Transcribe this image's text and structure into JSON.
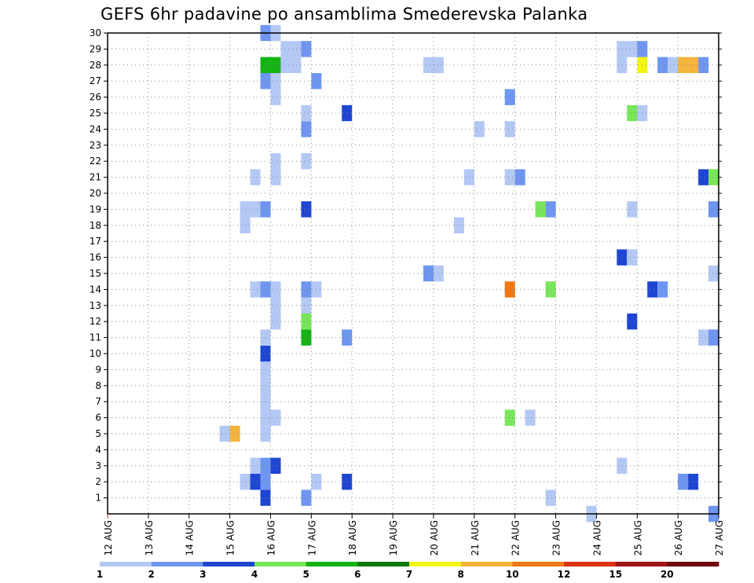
{
  "chart_data": {
    "type": "heatmap",
    "title": "GEFS 6hr padavine po ansamblima Smederevska Palanka",
    "x_ticks": [
      "12 AUG",
      "13 AUG",
      "14 AUG",
      "15 AUG",
      "16 AUG",
      "17 AUG",
      "18 AUG",
      "19 AUG",
      "20 AUG",
      "21 AUG",
      "22 AUG",
      "23 AUG",
      "24 AUG",
      "25 AUG",
      "26 AUG",
      "27 AUG"
    ],
    "y_ticks": [
      1,
      2,
      3,
      4,
      5,
      6,
      7,
      8,
      9,
      10,
      11,
      12,
      13,
      14,
      15,
      16,
      17,
      18,
      19,
      20,
      21,
      22,
      23,
      24,
      25,
      26,
      27,
      28,
      29,
      30
    ],
    "ylim": [
      0,
      30
    ],
    "x_step": "6 hr",
    "grid": true,
    "colorbar": {
      "ticks": [
        "1",
        "2",
        "3",
        "4",
        "5",
        "6",
        "7",
        "8",
        "10",
        "12",
        "15",
        "20"
      ],
      "colors": [
        "#b4c8f5",
        "#6e96f0",
        "#1e46d2",
        "#78e65a",
        "#14b414",
        "#0a780a",
        "#f5f514",
        "#f5b43c",
        "#f07814",
        "#dc3214",
        "#a01414",
        "#6e0a0a"
      ]
    },
    "cells_day_member_value": [
      [
        15.75,
        1,
        3
      ],
      [
        15.75,
        2,
        2
      ],
      [
        15.75,
        3,
        2
      ],
      [
        15.75,
        5,
        1
      ],
      [
        15.75,
        6,
        1
      ],
      [
        15.75,
        7,
        1
      ],
      [
        15.75,
        8,
        1
      ],
      [
        15.75,
        9,
        1
      ],
      [
        15.75,
        10,
        3
      ],
      [
        15.75,
        11,
        1
      ],
      [
        15.75,
        14,
        2
      ],
      [
        15.75,
        19,
        2
      ],
      [
        15.75,
        27,
        2
      ],
      [
        15.75,
        28,
        5
      ],
      [
        15.75,
        30,
        2
      ],
      [
        16.0,
        3,
        3
      ],
      [
        16.0,
        6,
        1
      ],
      [
        16.0,
        12,
        1
      ],
      [
        16.0,
        13,
        1
      ],
      [
        16.0,
        14,
        1
      ],
      [
        16.0,
        21,
        1
      ],
      [
        16.0,
        22,
        1
      ],
      [
        16.0,
        26,
        1
      ],
      [
        16.0,
        27,
        1
      ],
      [
        16.0,
        28,
        5
      ],
      [
        16.0,
        30,
        1
      ],
      [
        15.5,
        2,
        3
      ],
      [
        15.5,
        3,
        1
      ],
      [
        15.5,
        14,
        1
      ],
      [
        15.5,
        19,
        1
      ],
      [
        15.5,
        21,
        1
      ],
      [
        15.25,
        2,
        1
      ],
      [
        15.25,
        18,
        1
      ],
      [
        15.25,
        19,
        1
      ],
      [
        15.0,
        5,
        8
      ],
      [
        14.75,
        5,
        1
      ],
      [
        16.25,
        28,
        1
      ],
      [
        16.25,
        29,
        1
      ],
      [
        16.5,
        28,
        1
      ],
      [
        16.5,
        29,
        1
      ],
      [
        16.75,
        1,
        2
      ],
      [
        16.75,
        11,
        5
      ],
      [
        16.75,
        12,
        4
      ],
      [
        16.75,
        13,
        1
      ],
      [
        16.75,
        14,
        2
      ],
      [
        16.75,
        19,
        3
      ],
      [
        16.75,
        22,
        1
      ],
      [
        16.75,
        24,
        2
      ],
      [
        16.75,
        25,
        1
      ],
      [
        16.75,
        29,
        2
      ],
      [
        17.0,
        2,
        1
      ],
      [
        17.0,
        14,
        1
      ],
      [
        17.0,
        27,
        2
      ],
      [
        17.75,
        2,
        3
      ],
      [
        17.75,
        11,
        2
      ],
      [
        17.75,
        25,
        3
      ],
      [
        19.75,
        15,
        2
      ],
      [
        19.75,
        28,
        1
      ],
      [
        20.0,
        15,
        1
      ],
      [
        20.0,
        28,
        1
      ],
      [
        20.5,
        18,
        1
      ],
      [
        20.75,
        21,
        1
      ],
      [
        21.0,
        24,
        1
      ],
      [
        21.75,
        6,
        4
      ],
      [
        21.75,
        14,
        9
      ],
      [
        21.75,
        21,
        1
      ],
      [
        21.75,
        24,
        1
      ],
      [
        21.75,
        26,
        2
      ],
      [
        22.0,
        21,
        2
      ],
      [
        22.25,
        6,
        1
      ],
      [
        22.5,
        19,
        4
      ],
      [
        22.75,
        19,
        2
      ],
      [
        22.75,
        14,
        4
      ],
      [
        22.75,
        1,
        1
      ],
      [
        23.75,
        0,
        1
      ],
      [
        24.5,
        3,
        1
      ],
      [
        24.5,
        16,
        3
      ],
      [
        24.5,
        28,
        1
      ],
      [
        24.5,
        29,
        1
      ],
      [
        24.75,
        12,
        3
      ],
      [
        24.75,
        16,
        1
      ],
      [
        24.75,
        19,
        1
      ],
      [
        24.75,
        25,
        4
      ],
      [
        24.75,
        29,
        1
      ],
      [
        25.0,
        25,
        1
      ],
      [
        25.0,
        28,
        7
      ],
      [
        25.0,
        29,
        2
      ],
      [
        25.25,
        14,
        3
      ],
      [
        25.5,
        14,
        2
      ],
      [
        25.5,
        28,
        2
      ],
      [
        25.75,
        28,
        1
      ],
      [
        26.0,
        2,
        2
      ],
      [
        26.0,
        28,
        8
      ],
      [
        26.25,
        2,
        3
      ],
      [
        26.25,
        28,
        8
      ],
      [
        26.5,
        28,
        2
      ],
      [
        26.5,
        11,
        1
      ],
      [
        26.75,
        11,
        2
      ],
      [
        26.5,
        21,
        3
      ],
      [
        26.75,
        21,
        4
      ],
      [
        26.75,
        15,
        1
      ],
      [
        26.75,
        19,
        2
      ],
      [
        26.75,
        0,
        2
      ]
    ]
  }
}
